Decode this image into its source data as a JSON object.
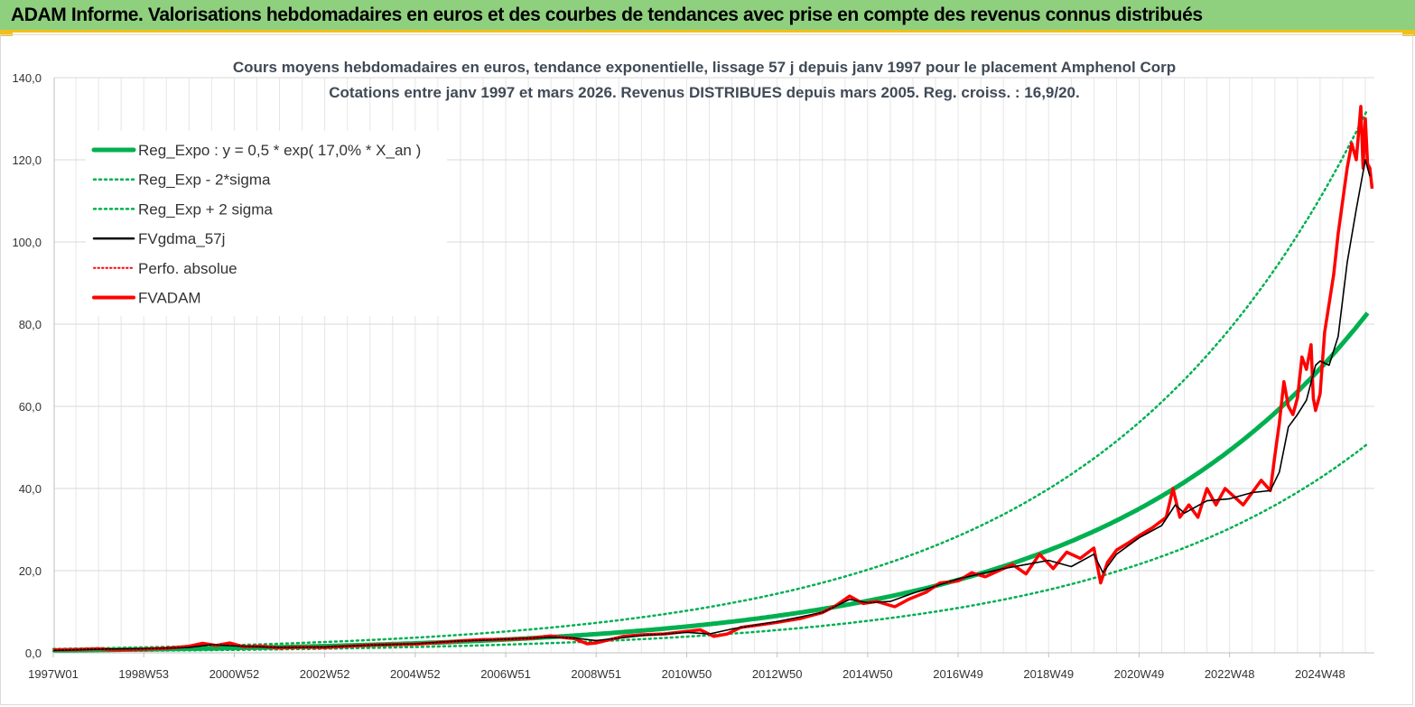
{
  "header": {
    "title": "ADAM Informe. Valorisations hebdomadaires en euros et des courbes de tendances avec prise en compte des revenus connus distribués"
  },
  "colors": {
    "reg_expo": "#00b050",
    "fvgdma": "#000000",
    "fvadam": "#ff0000",
    "header_bg": "#8fd07e",
    "accent": "#f2c01a"
  },
  "chart_data": {
    "type": "line",
    "title": "Cours moyens hebdomadaires en euros, tendance exponentielle, lissage 57 j depuis janv 1997 pour le placement Amphenol Corp",
    "subtitle": "Cotations entre janv 1997 et mars 2026. Revenus DISTRIBUES depuis mars 2005. Reg. croiss. : 16,9/20.",
    "xlabel": "",
    "ylabel": "",
    "ylim": [
      0,
      140
    ],
    "xlim": [
      1997.0,
      2026.2
    ],
    "grid": true,
    "legend_position": "top-left",
    "y_ticks": [
      "0,0",
      "20,0",
      "40,0",
      "60,0",
      "80,0",
      "100,0",
      "120,0",
      "140,0"
    ],
    "x_tick_labels": [
      "1997W01",
      "1998W53",
      "2000W52",
      "2002W52",
      "2004W52",
      "2006W51",
      "2008W51",
      "2010W50",
      "2012W50",
      "2014W50",
      "2016W49",
      "2018W49",
      "2020W49",
      "2022W48",
      "2024W48"
    ],
    "x_tick_years": [
      1997.0,
      1999.0,
      2001.0,
      2003.0,
      2005.0,
      2007.0,
      2009.0,
      2011.0,
      2013.0,
      2015.0,
      2017.0,
      2019.0,
      2021.0,
      2023.0,
      2025.0
    ],
    "regression": {
      "a": 0.5,
      "rate": 0.17,
      "t0": 1996.0,
      "sigma_factor_up": 1.6,
      "sigma_factor_down": 0.615
    },
    "series": [
      {
        "name": "Reg_Expo : y = 0,5 * exp( 17,0% *  X_an )",
        "kind": "reg"
      },
      {
        "name": "Reg_Exp - 2*sigma",
        "kind": "reg_low"
      },
      {
        "name": "Reg_Exp + 2 sigma",
        "kind": "reg_high"
      },
      {
        "name": "FVgdma_57j",
        "kind": "smooth",
        "x": [
          1997.0,
          1998.0,
          1999.0,
          2000.0,
          2000.5,
          2001.0,
          2002.0,
          2003.0,
          2004.0,
          2005.0,
          2006.0,
          2007.0,
          2008.0,
          2008.5,
          2009.0,
          2010.0,
          2011.0,
          2011.5,
          2012.0,
          2013.0,
          2014.0,
          2014.6,
          2015.0,
          2015.5,
          2016.0,
          2017.0,
          2017.6,
          2018.0,
          2018.5,
          2019.0,
          2019.5,
          2020.0,
          2020.2,
          2020.5,
          2021.0,
          2021.5,
          2021.8,
          2022.0,
          2022.5,
          2023.0,
          2023.5,
          2023.9,
          2024.1,
          2024.3,
          2024.5,
          2024.7,
          2024.9,
          2025.0,
          2025.2,
          2025.4,
          2025.6,
          2025.8,
          2026.0,
          2026.1
        ],
        "values": [
          0.6,
          0.9,
          1.0,
          1.3,
          2.0,
          1.7,
          1.3,
          1.4,
          1.9,
          2.2,
          2.9,
          3.3,
          3.8,
          3.6,
          3.0,
          4.2,
          5.0,
          4.6,
          5.8,
          7.6,
          9.8,
          13.0,
          12.2,
          12.5,
          14.5,
          18.0,
          19.5,
          20.5,
          21.5,
          22.5,
          21.0,
          24.0,
          19.5,
          24.0,
          28.0,
          31.0,
          36.0,
          34.0,
          37.0,
          37.5,
          39.0,
          39.5,
          44.0,
          55.0,
          58.0,
          61.5,
          70.0,
          71.0,
          70.0,
          77.0,
          95.0,
          108.0,
          120.0,
          116.0
        ]
      },
      {
        "name": "Perfo. absolue",
        "kind": "perfo"
      },
      {
        "name": "FVADAM",
        "kind": "raw",
        "x": [
          1997.0,
          1997.5,
          1998.0,
          1998.3,
          1998.8,
          1999.5,
          2000.0,
          2000.3,
          2000.6,
          2000.9,
          2001.2,
          2001.6,
          2002.0,
          2002.5,
          2003.0,
          2003.5,
          2004.0,
          2004.5,
          2005.0,
          2005.5,
          2006.0,
          2006.5,
          2007.0,
          2007.5,
          2008.0,
          2008.3,
          2008.5,
          2008.8,
          2009.0,
          2009.3,
          2009.6,
          2010.0,
          2010.5,
          2011.0,
          2011.3,
          2011.6,
          2011.9,
          2012.2,
          2012.6,
          2013.0,
          2013.5,
          2014.0,
          2014.3,
          2014.6,
          2014.9,
          2015.2,
          2015.6,
          2015.9,
          2016.3,
          2016.6,
          2017.0,
          2017.3,
          2017.6,
          2017.9,
          2018.2,
          2018.5,
          2018.8,
          2019.1,
          2019.4,
          2019.7,
          2020.0,
          2020.15,
          2020.3,
          2020.5,
          2020.8,
          2021.0,
          2021.3,
          2021.6,
          2021.75,
          2021.9,
          2022.1,
          2022.3,
          2022.5,
          2022.7,
          2022.9,
          2023.1,
          2023.3,
          2023.5,
          2023.7,
          2023.9,
          2024.0,
          2024.1,
          2024.2,
          2024.3,
          2024.4,
          2024.5,
          2024.6,
          2024.7,
          2024.8,
          2024.85,
          2024.9,
          2025.0,
          2025.1,
          2025.2,
          2025.3,
          2025.4,
          2025.5,
          2025.6,
          2025.7,
          2025.8,
          2025.9,
          2025.95,
          2026.0,
          2026.05,
          2026.1,
          2026.15
        ],
        "values": [
          0.7,
          0.8,
          1.0,
          0.7,
          0.8,
          1.1,
          1.6,
          2.3,
          1.8,
          2.4,
          1.5,
          1.6,
          1.2,
          1.4,
          1.3,
          1.6,
          1.9,
          2.0,
          2.1,
          2.5,
          2.9,
          3.2,
          3.3,
          3.5,
          4.1,
          3.7,
          3.5,
          2.2,
          2.4,
          3.2,
          4.0,
          4.4,
          4.6,
          5.2,
          5.6,
          4.0,
          4.6,
          6.2,
          6.8,
          7.4,
          8.3,
          9.8,
          11.5,
          13.8,
          12.0,
          12.5,
          11.2,
          13.0,
          14.8,
          17.0,
          17.5,
          19.5,
          18.5,
          20.0,
          21.5,
          19.2,
          24.0,
          20.5,
          24.5,
          23.0,
          25.5,
          17.0,
          22.0,
          25.0,
          27.0,
          28.5,
          30.5,
          33.0,
          40.0,
          33.0,
          36.0,
          33.0,
          40.0,
          36.0,
          40.0,
          38.0,
          36.0,
          39.0,
          42.0,
          39.5,
          48.0,
          56.0,
          66.0,
          60.0,
          58.0,
          62.0,
          72.0,
          69.0,
          75.0,
          62.0,
          59.0,
          63.0,
          78.0,
          85.0,
          92.0,
          102.0,
          110.0,
          118.0,
          124.0,
          120.0,
          133.0,
          118.0,
          130.0,
          119.0,
          118.0,
          113.0
        ]
      }
    ]
  }
}
